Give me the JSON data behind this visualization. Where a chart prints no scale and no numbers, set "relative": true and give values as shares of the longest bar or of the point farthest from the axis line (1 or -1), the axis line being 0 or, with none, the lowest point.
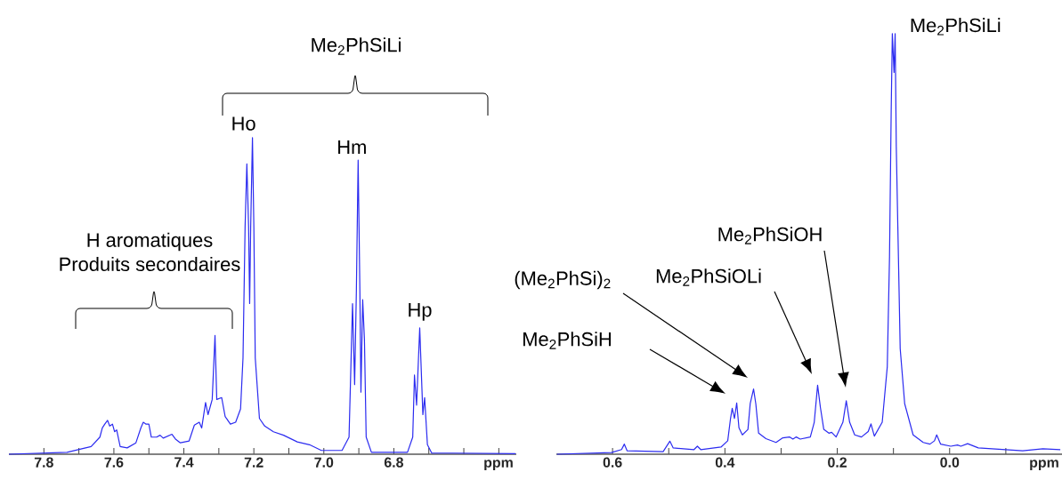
{
  "chart_data": [
    {
      "type": "line",
      "relative": true,
      "color": "#2b2bf0",
      "xlabel": "ppm",
      "xlim": [
        7.9,
        6.45
      ],
      "xticks": [
        7.8,
        {
          "value": 7.7,
          "label": null
        },
        7.6,
        {
          "value": 7.5,
          "label": null
        },
        7.4,
        {
          "value": 7.3,
          "label": null
        },
        7.2,
        {
          "value": 7.1,
          "label": null
        },
        {
          "value": 7,
          "label": "7.0"
        },
        {
          "value": 6.9,
          "label": null
        },
        6.8,
        {
          "value": 6.7,
          "label": null
        },
        {
          "value": 6.6,
          "label": null
        },
        {
          "value": 6.5,
          "label": null
        }
      ],
      "x": [
        7.9,
        7.734,
        7.665,
        7.64,
        7.633,
        7.626,
        7.618,
        7.612,
        7.604,
        7.598,
        7.592,
        7.582,
        7.562,
        7.537,
        7.523,
        7.516,
        7.508,
        7.5,
        7.493,
        7.478,
        7.468,
        7.459,
        7.434,
        7.424,
        7.41,
        7.385,
        7.37,
        7.356,
        7.349,
        7.338,
        7.331,
        7.319,
        7.311,
        7.306,
        7.292,
        7.282,
        7.267,
        7.252,
        7.238,
        7.231,
        7.225,
        7.22,
        7.215,
        7.212,
        7.209,
        7.204,
        7.2,
        7.196,
        7.184,
        7.169,
        7.144,
        7.115,
        7.076,
        7.041,
        7.007,
        6.948,
        6.928,
        6.918,
        6.912,
        6.907,
        6.902,
        6.897,
        6.894,
        6.889,
        6.884,
        6.879,
        6.864,
        6.761,
        6.746,
        6.741,
        6.735,
        6.726,
        6.717,
        6.712,
        6.704,
        6.692,
        6.452
      ],
      "values": [
        0,
        0.006,
        0.024,
        0.054,
        0.083,
        0.095,
        0.107,
        0.089,
        0.095,
        0.071,
        0.077,
        0.024,
        0.02,
        0.036,
        0.083,
        0.101,
        0.095,
        0.095,
        0.054,
        0.054,
        0.06,
        0.051,
        0.063,
        0.048,
        0.036,
        0.042,
        0.092,
        0.101,
        0.083,
        0.163,
        0.125,
        0.173,
        0.375,
        0.173,
        0.179,
        0.119,
        0.095,
        0.101,
        0.143,
        0.304,
        0.72,
        0.917,
        0.72,
        0.476,
        0.72,
        1,
        0.72,
        0.304,
        0.113,
        0.089,
        0.071,
        0.06,
        0.039,
        0.03,
        0.012,
        0.012,
        0.054,
        0.476,
        0.22,
        0.518,
        0.929,
        0.518,
        0.196,
        0.488,
        0.363,
        0.054,
        0.006,
        0.006,
        0.054,
        0.25,
        0.155,
        0.399,
        0.125,
        0.179,
        0.03,
        0.004,
        0.002
      ],
      "annotations": [
        "Me$_{2}$PhSiLi",
        {
          "text": "Ho",
          "x": 7.204,
          "y": 1
        },
        {
          "text": "Hm",
          "x": 6.902,
          "y": 0.929
        },
        {
          "text": "Hp",
          "x": 6.726,
          "y": 0.399
        },
        "H aromatiques",
        "Produits secondaires"
      ]
    },
    {
      "type": "line",
      "relative": true,
      "color": "#2b2bf0",
      "xlabel": "ppm",
      "xlim": [
        0.7,
        -0.2
      ],
      "xticks": [
        0.6,
        {
          "value": 0.5,
          "label": null
        },
        0.4,
        {
          "value": 0.3,
          "label": null
        },
        0.2,
        {
          "value": 0.1,
          "label": null
        },
        {
          "value": 0,
          "label": "0.0"
        },
        {
          "value": -0.1,
          "label": null
        }
      ],
      "x": [
        0.699,
        0.602,
        0.584,
        0.579,
        0.574,
        0.51,
        0.498,
        0.492,
        0.455,
        0.449,
        0.443,
        0.407,
        0.395,
        0.39,
        0.387,
        0.383,
        0.379,
        0.375,
        0.369,
        0.359,
        0.355,
        0.349,
        0.345,
        0.34,
        0.327,
        0.309,
        0.297,
        0.285,
        0.279,
        0.273,
        0.266,
        0.248,
        0.241,
        0.235,
        0.23,
        0.224,
        0.215,
        0.21,
        0.202,
        0.19,
        0.184,
        0.178,
        0.169,
        0.157,
        0.145,
        0.14,
        0.134,
        0.12,
        0.111,
        0.107,
        0.104,
        0.102,
        0.099,
        0.097,
        0.095,
        0.088,
        0.08,
        0.065,
        0.047,
        0.035,
        0.027,
        0.023,
        0.016,
        -0.002,
        -0.014,
        -0.02,
        -0.032,
        -0.051,
        -0.13,
        -0.166,
        -0.197
      ],
      "values": [
        0,
        0.004,
        0.011,
        0.024,
        0.008,
        0.006,
        0.031,
        0.015,
        0.011,
        0.019,
        0.011,
        0.017,
        0.032,
        0.085,
        0.109,
        0.085,
        0.122,
        0.063,
        0.046,
        0.059,
        0.12,
        0.155,
        0.12,
        0.05,
        0.037,
        0.028,
        0.039,
        0.041,
        0.036,
        0.041,
        0.036,
        0.041,
        0.076,
        0.164,
        0.111,
        0.059,
        0.05,
        0.052,
        0.041,
        0.076,
        0.127,
        0.076,
        0.046,
        0.041,
        0.054,
        0.072,
        0.043,
        0.076,
        0.208,
        0.47,
        0.82,
        1,
        0.908,
        1,
        0.733,
        0.251,
        0.12,
        0.046,
        0.028,
        0.024,
        0.032,
        0.046,
        0.024,
        0.019,
        0.022,
        0.019,
        0.025,
        0.015,
        0.008,
        0.013,
        0.011
      ],
      "annotations": [
        {
          "text": "Me$_{2}$PhSiLi",
          "x": 0.1,
          "y": 1
        },
        "Me$_{2}$PhSiOH",
        "Me$_{2}$PhSiOLi",
        "(Me$_{2}$PhSi)$_{2}$",
        "Me$_{2}$PhSiH"
      ]
    }
  ]
}
